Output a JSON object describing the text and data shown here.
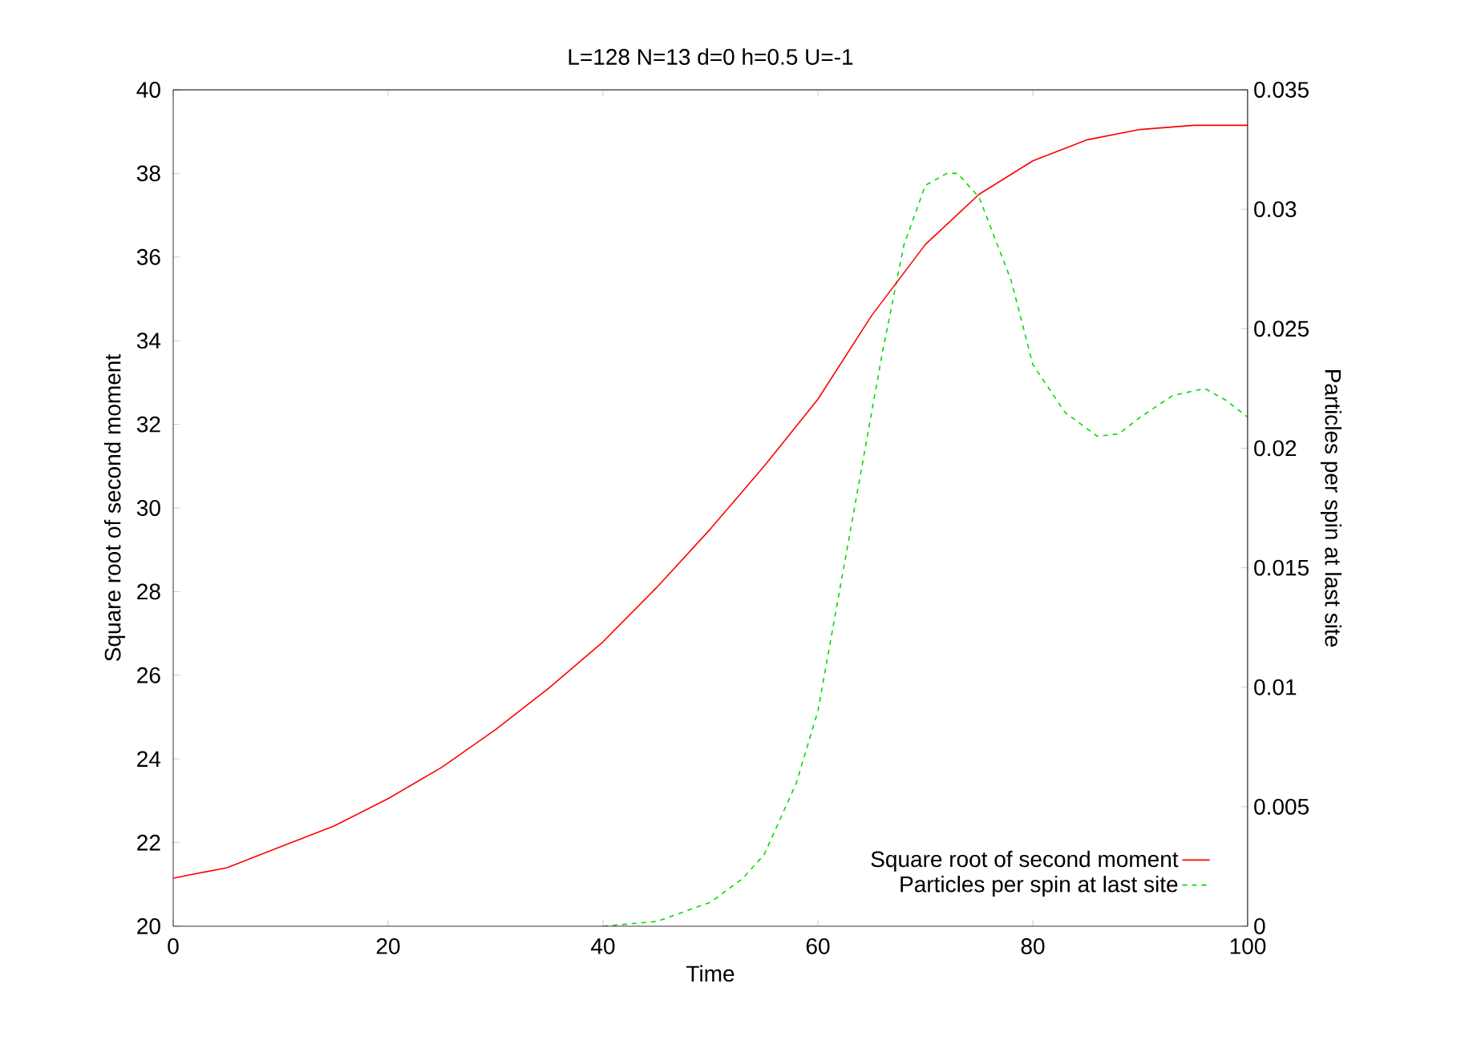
{
  "chart_data": {
    "type": "line",
    "title": "L=128 N=13 d=0 h=0.5 U=-1",
    "xlabel": "Time",
    "ylabel": "Square root of second moment",
    "y2label": "Particles per spin at last site",
    "xlim": [
      0,
      100
    ],
    "xticks": [
      0,
      20,
      40,
      60,
      80,
      100
    ],
    "ylim": [
      20,
      40
    ],
    "yticks": [
      20,
      22,
      24,
      26,
      28,
      30,
      32,
      34,
      36,
      38,
      40
    ],
    "y2lim": [
      0,
      0.035
    ],
    "y2ticks": [
      0,
      0.005,
      0.01,
      0.015,
      0.02,
      0.025,
      0.03,
      0.035
    ],
    "legend": "bottom right",
    "grid": false,
    "series": [
      {
        "name": "Square root of second moment",
        "color": "#ff0000",
        "line_style": "solid",
        "x": [
          0,
          5,
          10,
          15,
          20,
          25,
          30,
          35,
          40,
          45,
          50,
          55,
          60,
          65,
          70,
          75,
          80,
          85,
          90,
          95,
          100
        ],
        "values": [
          21.15,
          21.4,
          21.9,
          22.4,
          23.05,
          23.8,
          24.7,
          25.7,
          26.8,
          28.1,
          29.5,
          31.0,
          32.6,
          34.6,
          36.3,
          37.5,
          38.3,
          38.8,
          39.05,
          39.15,
          39.15
        ]
      },
      {
        "name": "Particles per spin at last site",
        "color": "#00dd00",
        "line_style": "dashed",
        "axis": "y2",
        "x": [
          40,
          45,
          50,
          53,
          55,
          58,
          60,
          62,
          64,
          66,
          68,
          70,
          72,
          73,
          75,
          78,
          80,
          83,
          86,
          88,
          90,
          93,
          96,
          98,
          100
        ],
        "values": [
          0,
          0.0002,
          0.001,
          0.002,
          0.003,
          0.006,
          0.009,
          0.014,
          0.019,
          0.024,
          0.0285,
          0.031,
          0.0315,
          0.0315,
          0.0305,
          0.027,
          0.0235,
          0.0215,
          0.0205,
          0.0206,
          0.0213,
          0.0222,
          0.0225,
          0.022,
          0.0213
        ]
      }
    ]
  }
}
